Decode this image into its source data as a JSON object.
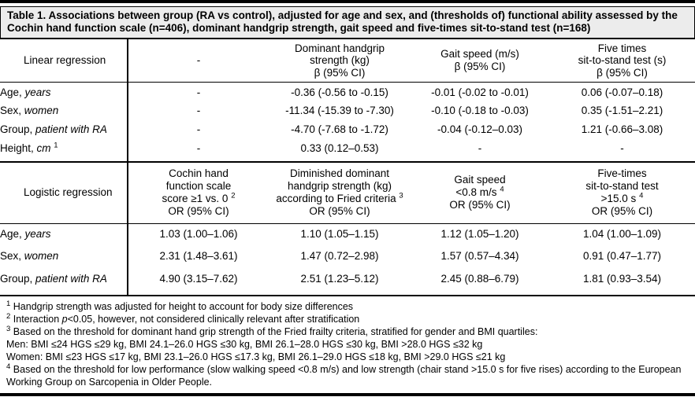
{
  "caption": "Table 1. Associations between group (RA vs control), adjusted for age and sex, and (thresholds of) functional ability assessed by the Cochin hand function scale (n=406), dominant handgrip strength, gait speed and five-times sit-to-stand test (n=168)",
  "colors": {
    "caption_background": "#ececec",
    "rule": "#000000",
    "text": "#000000",
    "page_background": "#ffffff"
  },
  "table": {
    "sections": [
      {
        "id": "linear",
        "label": "Linear regression",
        "columns": [
          {
            "lines": [
              {
                "t": "-"
              }
            ]
          },
          {
            "lines": [
              {
                "t": "Dominant handgrip"
              },
              {
                "t": "strength (kg)"
              },
              {
                "t": "β (95% CI)"
              }
            ]
          },
          {
            "lines": [
              {
                "t": "Gait speed (m/s)"
              },
              {
                "t": "β (95% CI)"
              }
            ]
          },
          {
            "lines": [
              {
                "t": "Five times"
              },
              {
                "t": "sit-to-stand test (s)"
              },
              {
                "t": "β (95% CI)"
              }
            ]
          }
        ],
        "rows": [
          {
            "pre": "Age, ",
            "italic": "years",
            "sup": "",
            "values": [
              "-",
              "-0.36 (-0.56 to -0.15)",
              "-0.01 (-0.02 to -0.01)",
              "0.06 (-0.07–0.18)"
            ]
          },
          {
            "pre": "Sex, ",
            "italic": "women",
            "sup": "",
            "values": [
              "-",
              "-11.34 (-15.39 to -7.30)",
              "-0.10 (-0.18 to -0.03)",
              "0.35 (-1.51–2.21)"
            ]
          },
          {
            "pre": "Group, ",
            "italic": "patient with RA",
            "sup": "",
            "values": [
              "-",
              "-4.70 (-7.68 to -1.72)",
              "-0.04 (-0.12–0.03)",
              "1.21 (-0.66–3.08)"
            ]
          },
          {
            "pre": "Height, ",
            "italic": "cm",
            "sup": "1",
            "values": [
              "-",
              "0.33 (0.12–0.53)",
              "-",
              "-"
            ]
          }
        ]
      },
      {
        "id": "logistic",
        "label": "Logistic regression",
        "columns": [
          {
            "lines": [
              {
                "t": "Cochin hand"
              },
              {
                "t": "function scale"
              },
              {
                "t": "score ≥1 vs. 0",
                "sup": "2"
              },
              {
                "t": "OR (95% CI)"
              }
            ]
          },
          {
            "lines": [
              {
                "t": "Diminished dominant"
              },
              {
                "t": "handgrip strength (kg)"
              },
              {
                "t": "according to Fried criteria",
                "sup": "3"
              },
              {
                "t": "OR (95% CI)"
              }
            ]
          },
          {
            "lines": [
              {
                "t": "Gait speed"
              },
              {
                "t": "<0.8 m/s",
                "sup": "4"
              },
              {
                "t": "OR (95% CI)"
              }
            ]
          },
          {
            "lines": [
              {
                "t": "Five-times"
              },
              {
                "t": "sit-to-stand test"
              },
              {
                "t": ">15.0 s",
                "sup": "4"
              },
              {
                "t": "OR (95% CI)"
              }
            ]
          }
        ],
        "rows": [
          {
            "pre": "Age, ",
            "italic": "years",
            "sup": "",
            "values": [
              "1.03 (1.00–1.06)",
              "1.10 (1.05–1.15)",
              "1.12 (1.05–1.20)",
              "1.04 (1.00–1.09)"
            ]
          },
          {
            "pre": "Sex, ",
            "italic": "women",
            "sup": "",
            "values": [
              "2.31 (1.48–3.61)",
              "1.47 (0.72–2.98)",
              "1.57 (0.57–4.34)",
              "0.91 (0.47–1.77)"
            ]
          },
          {
            "pre": "Group, ",
            "italic": "patient with RA",
            "sup": "",
            "values": [
              "4.90 (3.15–7.62)",
              "2.51 (1.23–5.12)",
              "2.45 (0.88–6.79)",
              "1.81 (0.93–3.54)"
            ]
          }
        ]
      }
    ]
  },
  "footnotes": [
    {
      "sup": "1",
      "pre": "",
      "italic": "",
      "text": "Handgrip strength was adjusted for height to account for body size differences"
    },
    {
      "sup": "2",
      "pre": "Interaction ",
      "italic": "p",
      "text": "<0.05, however, not considered clinically relevant after stratification"
    },
    {
      "sup": "3",
      "pre": "",
      "italic": "",
      "text": "Based on the threshold for dominant hand grip strength of the Fried frailty criteria, stratified for gender and BMI quartiles:"
    },
    {
      "sup": "",
      "pre": "",
      "italic": "",
      "text": "Men: BMI ≤24 HGS ≤29 kg, BMI 24.1–26.0 HGS ≤30 kg, BMI 26.1–28.0 HGS ≤30 kg, BMI >28.0 HGS ≤32 kg"
    },
    {
      "sup": "",
      "pre": "",
      "italic": "",
      "text": "Women: BMI ≤23 HGS ≤17 kg,  BMI 23.1–26.0 HGS ≤17.3 kg,  BMI 26.1–29.0 HGS ≤18 kg, BMI >29.0 HGS ≤21 kg"
    },
    {
      "sup": "4",
      "pre": "",
      "italic": "",
      "text": "Based on the threshold for low performance (slow walking speed <0.8 m/s) and low strength (chair stand >15.0 s for five rises) according to the European Working Group on Sarcopenia in Older People."
    }
  ]
}
